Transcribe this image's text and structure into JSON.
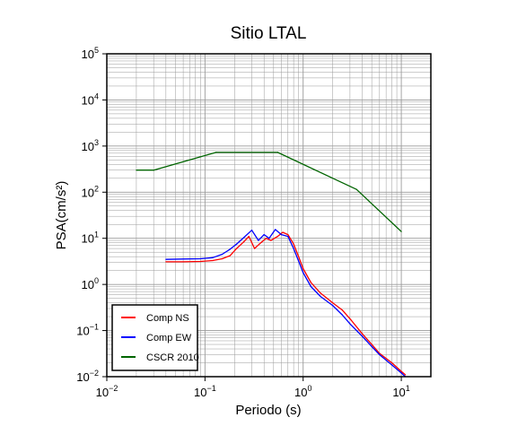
{
  "chart_data": {
    "type": "line",
    "title": "Sitio LTAL",
    "xlabel": "Periodo (s)",
    "ylabel": "PSA(cm/s²)",
    "xscale": "log",
    "yscale": "log",
    "xlim": [
      0.01,
      20
    ],
    "ylim": [
      0.01,
      100000
    ],
    "grid": true,
    "legend_position": "bottom-left",
    "x_ticks": [
      {
        "base": "10",
        "exp": "−2"
      },
      {
        "base": "10",
        "exp": "−1"
      },
      {
        "base": "10",
        "exp": "0"
      },
      {
        "base": "10",
        "exp": "1"
      }
    ],
    "y_ticks": [
      {
        "base": "10",
        "exp": "−2"
      },
      {
        "base": "10",
        "exp": "−1"
      },
      {
        "base": "10",
        "exp": "0"
      },
      {
        "base": "10",
        "exp": "1"
      },
      {
        "base": "10",
        "exp": "2"
      },
      {
        "base": "10",
        "exp": "3"
      },
      {
        "base": "10",
        "exp": "4"
      },
      {
        "base": "10",
        "exp": "5"
      }
    ],
    "series": [
      {
        "name": "Comp NS",
        "color": "#ff0000",
        "x": [
          0.04,
          0.06,
          0.09,
          0.12,
          0.15,
          0.18,
          0.21,
          0.25,
          0.28,
          0.32,
          0.37,
          0.42,
          0.47,
          0.55,
          0.62,
          0.7,
          0.8,
          0.9,
          1.0,
          1.2,
          1.5,
          2.0,
          2.5,
          3.0,
          4.0,
          5.0,
          6.0,
          8.0,
          10.0,
          11.0
        ],
        "y": [
          3.1,
          3.1,
          3.15,
          3.3,
          3.6,
          4.2,
          6.0,
          8.5,
          11.0,
          6.0,
          8.0,
          10.0,
          9.0,
          11.0,
          13.5,
          12.0,
          7.5,
          4.0,
          2.2,
          1.1,
          0.65,
          0.4,
          0.28,
          0.18,
          0.085,
          0.05,
          0.032,
          0.02,
          0.013,
          0.011
        ]
      },
      {
        "name": "Comp EW",
        "color": "#0000ff",
        "x": [
          0.04,
          0.06,
          0.09,
          0.12,
          0.15,
          0.18,
          0.21,
          0.25,
          0.3,
          0.35,
          0.4,
          0.45,
          0.52,
          0.6,
          0.7,
          0.8,
          0.9,
          1.0,
          1.2,
          1.5,
          2.0,
          2.5,
          3.0,
          4.0,
          5.0,
          6.0,
          8.0,
          10.0,
          11.0
        ],
        "y": [
          3.5,
          3.55,
          3.6,
          3.8,
          4.5,
          5.8,
          7.5,
          10.5,
          15.0,
          9.0,
          12.0,
          10.0,
          15.5,
          12.0,
          11.0,
          6.0,
          3.2,
          1.8,
          0.9,
          0.55,
          0.35,
          0.22,
          0.14,
          0.075,
          0.045,
          0.03,
          0.018,
          0.012,
          0.01
        ]
      },
      {
        "name": "CSCR 2010",
        "color": "#006400",
        "x": [
          0.02,
          0.03,
          0.13,
          0.55,
          3.5,
          10.0
        ],
        "y": [
          300,
          300,
          730,
          730,
          115,
          14
        ]
      }
    ]
  }
}
